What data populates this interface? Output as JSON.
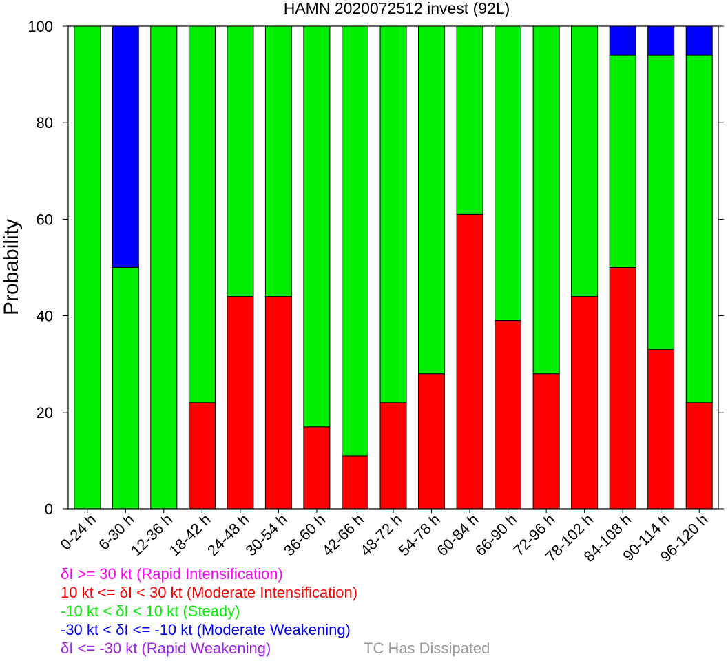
{
  "chart_data": {
    "type": "bar",
    "stacked": true,
    "title": "HAMN 2020072512 invest (92L)",
    "xlabel": "",
    "ylabel": "Probability",
    "ylim": [
      0,
      100
    ],
    "yticks": [
      0,
      20,
      40,
      60,
      80,
      100
    ],
    "categories": [
      "0-24 h",
      "6-30 h",
      "12-36 h",
      "18-42 h",
      "24-48 h",
      "30-54 h",
      "36-60 h",
      "42-66 h",
      "48-72 h",
      "54-78 h",
      "60-84 h",
      "66-90 h",
      "72-96 h",
      "78-102 h",
      "84-108 h",
      "90-114 h",
      "96-120 h"
    ],
    "series": [
      {
        "name": "10 kt <= δI < 30 kt (Moderate Intensification)",
        "color": "#ff0000",
        "values": [
          0,
          0,
          0,
          22,
          44,
          44,
          17,
          11,
          22,
          28,
          61,
          39,
          28,
          44,
          50,
          33,
          22
        ]
      },
      {
        "name": "-10 kt < δI < 10 kt (Steady)",
        "color": "#00ee00",
        "values": [
          100,
          50,
          100,
          78,
          56,
          56,
          83,
          89,
          78,
          72,
          39,
          61,
          72,
          56,
          44,
          61,
          72
        ]
      },
      {
        "name": "-30 kt < δI <= -10 kt (Moderate Weakening)",
        "color": "#0000ff",
        "values": [
          0,
          50,
          0,
          0,
          0,
          0,
          0,
          0,
          0,
          0,
          0,
          0,
          0,
          0,
          6,
          6,
          6
        ]
      }
    ],
    "grid": false
  },
  "legend": {
    "ri": {
      "label": "δI >= 30 kt (Rapid Intensification)",
      "color": "#ff00ff"
    },
    "mi": {
      "label": "10 kt <= δI < 30 kt (Moderate Intensification)",
      "color": "#ff0000"
    },
    "steady": {
      "label": "-10 kt < δI < 10 kt (Steady)",
      "color": "#00ee00"
    },
    "mw": {
      "label": "-30 kt < δI <= -10 kt (Moderate Weakening)",
      "color": "#0000ff"
    },
    "rw": {
      "label": "δI <= -30 kt (Rapid Weakening)",
      "color": "#a020f0"
    },
    "dissipated": {
      "label": "TC Has Dissipated",
      "color": "#999999"
    }
  }
}
